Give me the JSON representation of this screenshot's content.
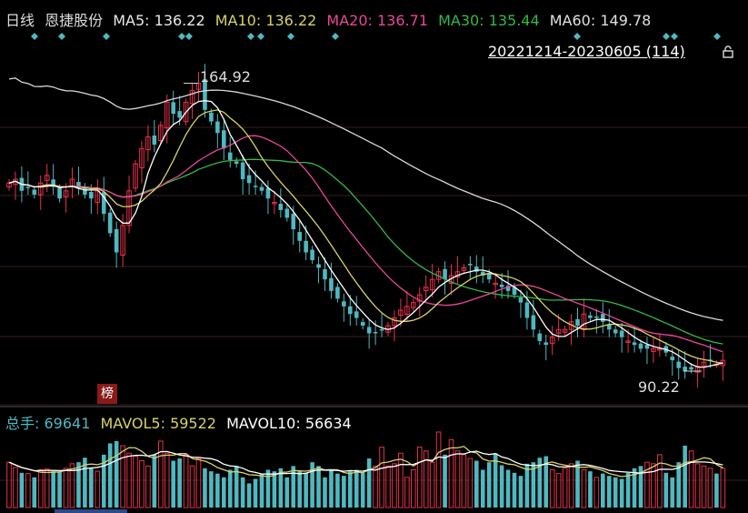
{
  "header": {
    "period_label": "日线",
    "stock_name": "恩捷股份",
    "ma": [
      {
        "label": "MA5:",
        "value": "136.22",
        "color": "#e8e8e8"
      },
      {
        "label": "MA10:",
        "value": "136.22",
        "color": "#d8d26a"
      },
      {
        "label": "MA20:",
        "value": "136.71",
        "color": "#e8479a"
      },
      {
        "label": "MA30:",
        "value": "135.44",
        "color": "#35b84a"
      },
      {
        "label": "MA60:",
        "value": "149.78",
        "color": "#e0e0e0"
      }
    ]
  },
  "date_range": "20221214-20230605 (114)",
  "badge": "榜",
  "volume_header": {
    "total": {
      "label": "总手:",
      "value": "69641",
      "color": "#4fb8c0"
    },
    "mavol5": {
      "label": "MAVOL5:",
      "value": "59522",
      "color": "#d8d26a"
    },
    "mavol10": {
      "label": "MAVOL10:",
      "value": "56634",
      "color": "#ffffff"
    }
  },
  "colors": {
    "up": "#e8314a",
    "down": "#4fb8c0",
    "ma5": "#ffffff",
    "ma10": "#d8d26a",
    "ma20": "#e8479a",
    "ma30": "#35b84a",
    "ma60": "#d9d9d9",
    "grid": "#3a1e1e",
    "marker": "#4fb8c0"
  },
  "chart_data": {
    "type": "candlestick",
    "title": "日线 恩捷股份",
    "x_range": [
      "20221214",
      "20230605"
    ],
    "bar_count": 114,
    "ylim": [
      85,
      170
    ],
    "annotations": {
      "high": "164.92",
      "low": "90.22"
    },
    "ohlc_close": [
      139,
      140,
      137,
      138,
      136,
      139,
      141,
      138,
      135,
      137,
      140,
      138,
      136,
      135,
      137,
      131,
      126,
      121,
      128,
      137,
      144,
      148,
      151,
      149,
      154,
      160,
      157,
      156,
      160,
      163,
      164.9,
      158,
      155,
      152,
      148,
      145,
      144,
      140,
      139,
      138,
      137,
      135,
      134,
      132,
      130,
      127,
      124,
      121,
      119,
      117,
      114,
      111,
      109,
      107,
      105,
      104,
      102,
      100,
      100,
      101,
      102,
      104,
      106,
      107,
      108,
      110,
      112,
      114,
      116,
      114,
      115,
      116,
      117,
      118,
      116,
      115,
      114,
      113,
      112,
      111,
      110,
      108,
      104,
      101,
      98,
      97,
      99,
      101,
      101,
      103,
      102,
      105,
      104,
      104,
      103,
      101,
      100,
      99,
      98,
      97,
      96,
      96,
      96,
      96,
      95,
      93,
      91,
      90.2,
      90.6,
      91.5,
      92.5,
      93,
      92,
      93
    ],
    "ma5": {
      "name": "MA5",
      "value": "136.22"
    },
    "ma10": {
      "name": "MA10",
      "value": "136.22"
    },
    "ma20": {
      "name": "MA20",
      "value": "136.71"
    },
    "ma30": {
      "name": "MA30",
      "value": "135.44"
    },
    "ma60": {
      "name": "MA60",
      "value": "149.78"
    },
    "volume": [
      60,
      53,
      46,
      45,
      40,
      50,
      51,
      48,
      47,
      52,
      58,
      60,
      66,
      52,
      48,
      70,
      85,
      88,
      82,
      72,
      68,
      62,
      55,
      70,
      88,
      72,
      62,
      65,
      70,
      55,
      65,
      52,
      48,
      45,
      40,
      50,
      55,
      40,
      32,
      38,
      45,
      50,
      48,
      52,
      40,
      55,
      48,
      46,
      60,
      55,
      40,
      50,
      45,
      42,
      48,
      50,
      46,
      65,
      55,
      80,
      55,
      58,
      72,
      40,
      50,
      80,
      75,
      60,
      100,
      70,
      90,
      75,
      70,
      65,
      62,
      50,
      60,
      72,
      56,
      50,
      46,
      42,
      58,
      60,
      66,
      68,
      50,
      45,
      52,
      58,
      62,
      50,
      48,
      40,
      45,
      42,
      40,
      38,
      46,
      52,
      55,
      60,
      58,
      70,
      46,
      40,
      60,
      82,
      75,
      58,
      55,
      52,
      45,
      52
    ]
  }
}
